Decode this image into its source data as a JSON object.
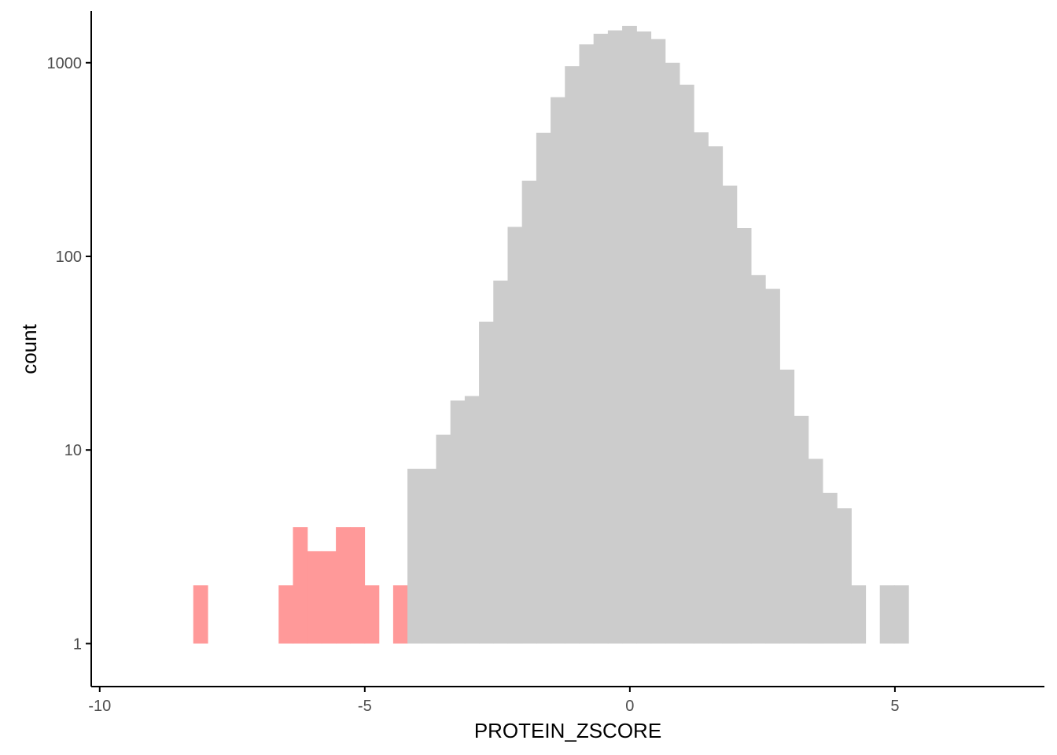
{
  "chart_data": {
    "type": "bar",
    "title": "",
    "xlabel": "PROTEIN_ZSCORE",
    "ylabel": "count",
    "y_scale": "log10",
    "xlim": [
      -10.16,
      7.82
    ],
    "ylim": [
      0.6,
      1850
    ],
    "x_ticks": [
      -10,
      -5,
      0,
      5
    ],
    "x_tick_labels": [
      "-10",
      "-5",
      "0",
      "5"
    ],
    "y_ticks": [
      1,
      10,
      100,
      1000
    ],
    "y_tick_labels": [
      "1",
      "10",
      "100",
      "1000"
    ],
    "grid": false,
    "legend": "none",
    "bin_width": 0.27,
    "colors": {
      "highlighted": "#FF9999",
      "normal": "#CCCCCC",
      "axis": "#000000"
    },
    "bins": [
      {
        "x": -8.1,
        "count": 2,
        "group": "highlighted"
      },
      {
        "x": -6.49,
        "count": 2,
        "group": "highlighted"
      },
      {
        "x": -6.22,
        "count": 4,
        "group": "highlighted"
      },
      {
        "x": -5.95,
        "count": 3,
        "group": "highlighted"
      },
      {
        "x": -5.68,
        "count": 3,
        "group": "highlighted"
      },
      {
        "x": -5.41,
        "count": 4,
        "group": "highlighted"
      },
      {
        "x": -5.14,
        "count": 4,
        "group": "highlighted"
      },
      {
        "x": -4.87,
        "count": 2,
        "group": "highlighted"
      },
      {
        "x": -4.33,
        "count": 2,
        "group": "highlighted"
      },
      {
        "x": -4.06,
        "count": 8,
        "group": "normal"
      },
      {
        "x": -3.79,
        "count": 8,
        "group": "normal"
      },
      {
        "x": -3.52,
        "count": 12,
        "group": "normal"
      },
      {
        "x": -3.25,
        "count": 18,
        "group": "normal"
      },
      {
        "x": -2.98,
        "count": 19,
        "group": "normal"
      },
      {
        "x": -2.71,
        "count": 46,
        "group": "normal"
      },
      {
        "x": -2.44,
        "count": 75,
        "group": "normal"
      },
      {
        "x": -2.17,
        "count": 142,
        "group": "normal"
      },
      {
        "x": -1.9,
        "count": 246,
        "group": "normal"
      },
      {
        "x": -1.63,
        "count": 435,
        "group": "normal"
      },
      {
        "x": -1.36,
        "count": 664,
        "group": "normal"
      },
      {
        "x": -1.09,
        "count": 960,
        "group": "normal"
      },
      {
        "x": -0.82,
        "count": 1245,
        "group": "normal"
      },
      {
        "x": -0.55,
        "count": 1412,
        "group": "normal"
      },
      {
        "x": -0.28,
        "count": 1470,
        "group": "normal"
      },
      {
        "x": -0.01,
        "count": 1550,
        "group": "normal"
      },
      {
        "x": 0.26,
        "count": 1450,
        "group": "normal"
      },
      {
        "x": 0.53,
        "count": 1325,
        "group": "normal"
      },
      {
        "x": 0.8,
        "count": 1000,
        "group": "normal"
      },
      {
        "x": 1.07,
        "count": 770,
        "group": "normal"
      },
      {
        "x": 1.34,
        "count": 437,
        "group": "normal"
      },
      {
        "x": 1.61,
        "count": 370,
        "group": "normal"
      },
      {
        "x": 1.88,
        "count": 232,
        "group": "normal"
      },
      {
        "x": 2.15,
        "count": 140,
        "group": "normal"
      },
      {
        "x": 2.42,
        "count": 80,
        "group": "normal"
      },
      {
        "x": 2.69,
        "count": 68,
        "group": "normal"
      },
      {
        "x": 2.96,
        "count": 26,
        "group": "normal"
      },
      {
        "x": 3.23,
        "count": 15,
        "group": "normal"
      },
      {
        "x": 3.5,
        "count": 9,
        "group": "normal"
      },
      {
        "x": 3.77,
        "count": 6,
        "group": "normal"
      },
      {
        "x": 4.04,
        "count": 5,
        "group": "normal"
      },
      {
        "x": 4.31,
        "count": 2,
        "group": "normal"
      },
      {
        "x": 4.85,
        "count": 2,
        "group": "normal"
      },
      {
        "x": 5.12,
        "count": 2,
        "group": "normal"
      }
    ]
  }
}
